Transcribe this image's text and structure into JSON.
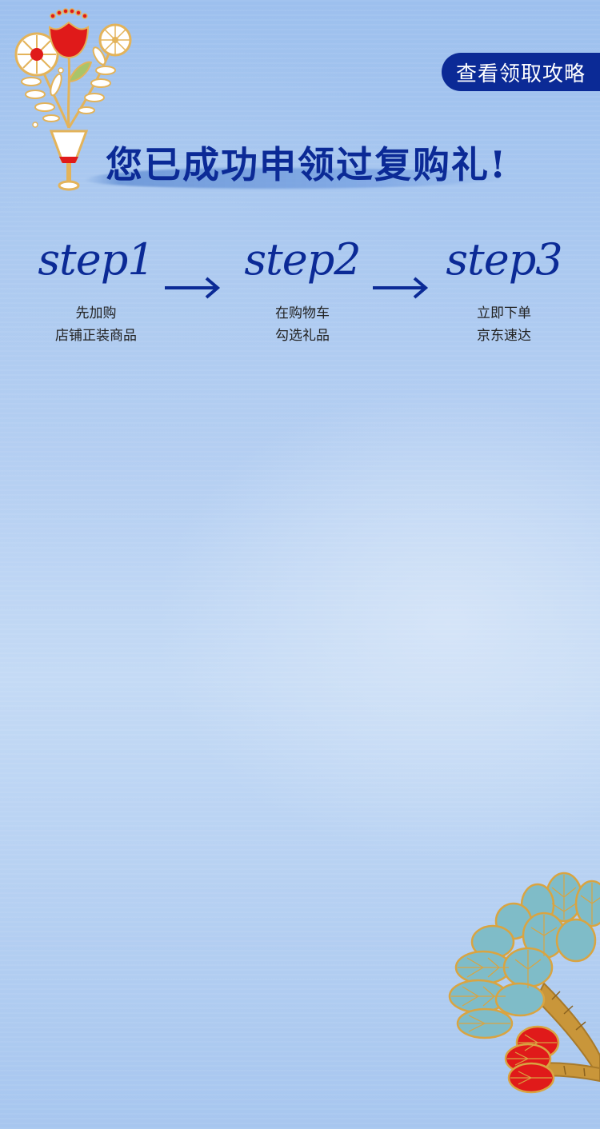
{
  "header": {
    "guide_button_label": "查看领取攻略"
  },
  "headline": "您已成功申领过复购礼!",
  "steps": [
    {
      "title": "step1",
      "line1": "先加购",
      "line2": "店铺正装商品"
    },
    {
      "title": "step2",
      "line1": "在购物车",
      "line2": "勾选礼品"
    },
    {
      "title": "step3",
      "line1": "立即下单",
      "line2": "京东速达"
    }
  ],
  "colors": {
    "brand_navy": "#0b2a96",
    "accent_red": "#e01a1a",
    "gold": "#d9a441",
    "leaf_teal": "#7fbcc8"
  },
  "icons": [
    "flower-vase-icon",
    "arrow-right-icon",
    "tree-branch-icon"
  ]
}
